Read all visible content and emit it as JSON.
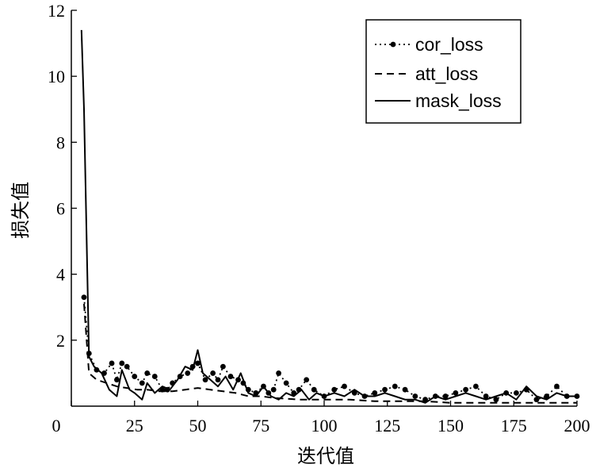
{
  "chart_data": {
    "type": "line",
    "xlabel": "迭代值",
    "ylabel": "损失值",
    "xlim": [
      0,
      200
    ],
    "ylim": [
      0,
      12
    ],
    "xticks": [
      0,
      25,
      50,
      75,
      100,
      125,
      150,
      175,
      200
    ],
    "yticks": [
      2,
      4,
      6,
      8,
      10,
      12
    ],
    "x_tick_labels": [
      "0",
      "25",
      "50",
      "75",
      "100",
      "125",
      "150",
      "175",
      "200"
    ],
    "y_tick_labels": [
      "2",
      "4",
      "6",
      "8",
      "10",
      "12"
    ],
    "grid": false,
    "legend_position": "top-right",
    "series": [
      {
        "name": "cor_loss",
        "style": "dotted-marker",
        "x": [
          5,
          7,
          10,
          13,
          16,
          18,
          20,
          22,
          25,
          28,
          30,
          33,
          36,
          38,
          40,
          43,
          46,
          48,
          50,
          53,
          56,
          58,
          60,
          63,
          66,
          68,
          70,
          73,
          76,
          78,
          80,
          82,
          85,
          88,
          90,
          93,
          96,
          100,
          104,
          108,
          112,
          116,
          120,
          124,
          128,
          132,
          136,
          140,
          144,
          148,
          152,
          156,
          160,
          164,
          168,
          172,
          176,
          180,
          184,
          188,
          192,
          196,
          200
        ],
        "y": [
          3.3,
          1.6,
          1.1,
          1.0,
          1.3,
          0.8,
          1.3,
          1.2,
          0.9,
          0.7,
          1.0,
          0.9,
          0.5,
          0.5,
          0.7,
          0.9,
          1.0,
          1.2,
          1.3,
          0.8,
          1.0,
          0.8,
          1.2,
          0.9,
          0.8,
          0.7,
          0.5,
          0.4,
          0.6,
          0.4,
          0.5,
          1.0,
          0.7,
          0.4,
          0.5,
          0.8,
          0.5,
          0.3,
          0.5,
          0.6,
          0.4,
          0.3,
          0.4,
          0.5,
          0.6,
          0.5,
          0.3,
          0.2,
          0.3,
          0.3,
          0.4,
          0.5,
          0.6,
          0.3,
          0.2,
          0.4,
          0.4,
          0.5,
          0.2,
          0.3,
          0.6,
          0.3,
          0.3
        ]
      },
      {
        "name": "att_loss",
        "style": "dashed",
        "x": [
          5,
          7,
          10,
          14,
          18,
          22,
          26,
          30,
          35,
          40,
          45,
          50,
          55,
          60,
          65,
          70,
          75,
          80,
          90,
          100,
          110,
          120,
          130,
          140,
          150,
          160,
          170,
          180,
          190,
          200
        ],
        "y": [
          3.1,
          1.0,
          0.8,
          0.7,
          0.6,
          0.55,
          0.5,
          0.5,
          0.45,
          0.45,
          0.5,
          0.55,
          0.5,
          0.45,
          0.4,
          0.3,
          0.3,
          0.25,
          0.2,
          0.2,
          0.2,
          0.15,
          0.15,
          0.15,
          0.1,
          0.1,
          0.1,
          0.1,
          0.1,
          0.1
        ]
      },
      {
        "name": "mask_loss",
        "style": "solid",
        "x": [
          4,
          5,
          7,
          9,
          12,
          15,
          18,
          20,
          23,
          25,
          28,
          30,
          33,
          36,
          39,
          42,
          45,
          48,
          50,
          52,
          55,
          58,
          61,
          64,
          67,
          70,
          73,
          76,
          79,
          82,
          85,
          88,
          91,
          94,
          97,
          100,
          104,
          108,
          112,
          116,
          120,
          124,
          128,
          132,
          136,
          140,
          144,
          148,
          152,
          156,
          160,
          164,
          168,
          172,
          176,
          180,
          184,
          188,
          192,
          196,
          200
        ],
        "y": [
          11.4,
          9.0,
          1.5,
          1.2,
          1.0,
          0.5,
          0.3,
          1.1,
          0.5,
          0.4,
          0.2,
          0.7,
          0.4,
          0.6,
          0.5,
          0.8,
          1.2,
          1.1,
          1.7,
          1.0,
          0.8,
          0.6,
          0.9,
          0.5,
          1.0,
          0.4,
          0.3,
          0.6,
          0.3,
          0.2,
          0.4,
          0.3,
          0.5,
          0.2,
          0.4,
          0.3,
          0.4,
          0.3,
          0.5,
          0.3,
          0.3,
          0.4,
          0.3,
          0.2,
          0.2,
          0.1,
          0.3,
          0.2,
          0.3,
          0.4,
          0.3,
          0.2,
          0.3,
          0.4,
          0.2,
          0.6,
          0.3,
          0.2,
          0.4,
          0.3,
          0.3
        ]
      }
    ]
  }
}
